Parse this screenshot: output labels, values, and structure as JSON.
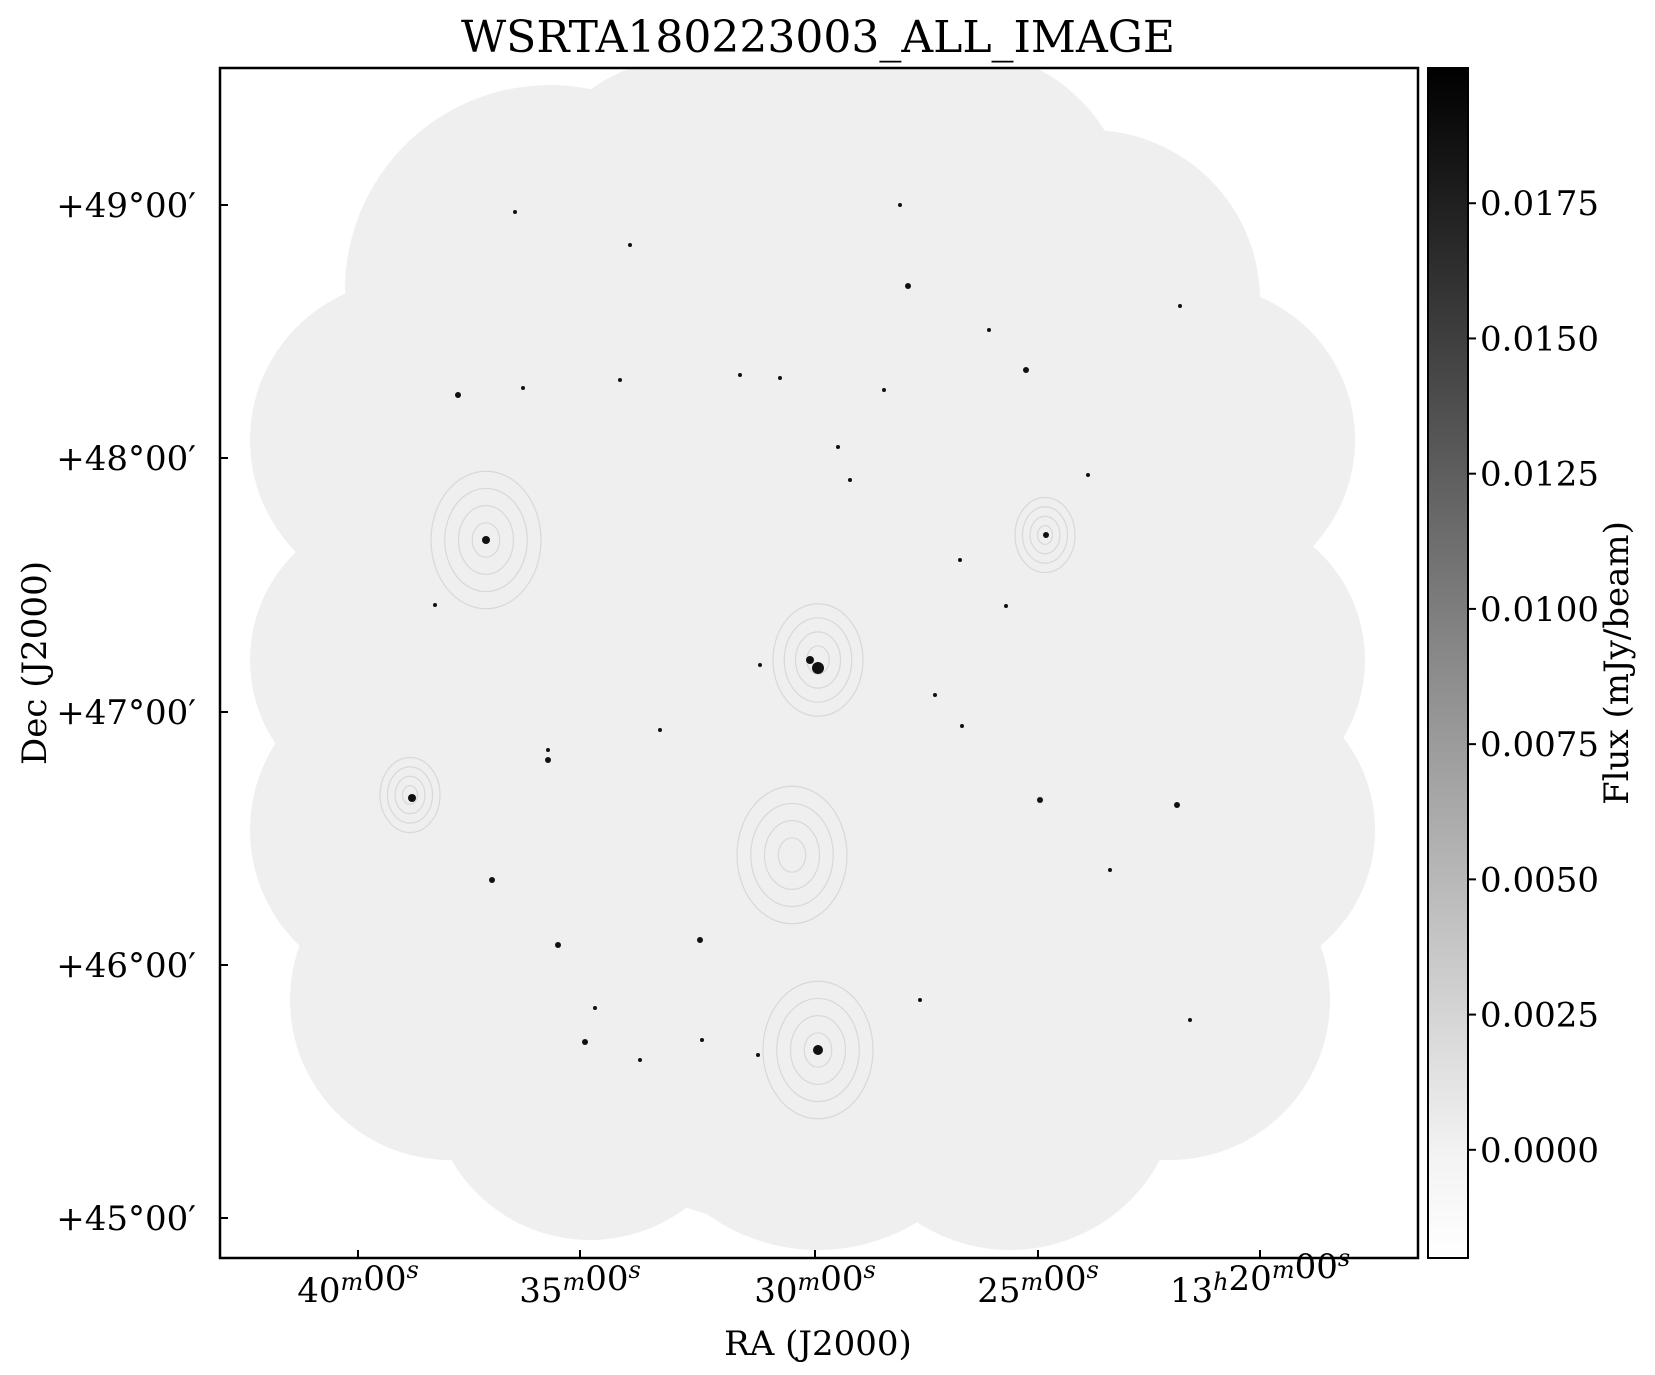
{
  "chart_data": {
    "type": "heatmap",
    "title": "WSRTA180223003_ALL_IMAGE",
    "xlabel": "RA (J2000)",
    "ylabel": "Dec (J2000)",
    "colorbar_label": "Flux (mJy/beam)",
    "x_ticks": [
      {
        "label": "40",
        "unit1": "m",
        "mid": "00",
        "unit2": "s",
        "value_min": 40
      },
      {
        "label": "35",
        "unit1": "m",
        "mid": "00",
        "unit2": "s",
        "value_min": 35
      },
      {
        "label": "30",
        "unit1": "m",
        "mid": "00",
        "unit2": "s",
        "value_min": 30
      },
      {
        "label": "25",
        "unit1": "m",
        "mid": "00",
        "unit2": "s",
        "value_min": 25
      },
      {
        "label": "13",
        "unit1": "h",
        "mid": "20",
        "unit2": "m",
        "tail": "00",
        "unit3": "s",
        "value_min": 20
      }
    ],
    "y_ticks": [
      {
        "text": "+49°00′",
        "value_deg": 49
      },
      {
        "text": "+48°00′",
        "value_deg": 48
      },
      {
        "text": "+47°00′",
        "value_deg": 47
      },
      {
        "text": "+46°00′",
        "value_deg": 46
      },
      {
        "text": "+45°00′",
        "value_deg": 45
      }
    ],
    "colorbar_ticks": [
      "0.0175",
      "0.0150",
      "0.0125",
      "0.0100",
      "0.0075",
      "0.0050",
      "0.0025",
      "0.0000"
    ],
    "colorbar_tick_values": [
      0.0175,
      0.015,
      0.0125,
      0.01,
      0.0075,
      0.005,
      0.0025,
      0.0
    ],
    "colorbar_range": [
      -0.002,
      0.02
    ],
    "colormap": "gray_r",
    "background_color": "#efefef"
  }
}
